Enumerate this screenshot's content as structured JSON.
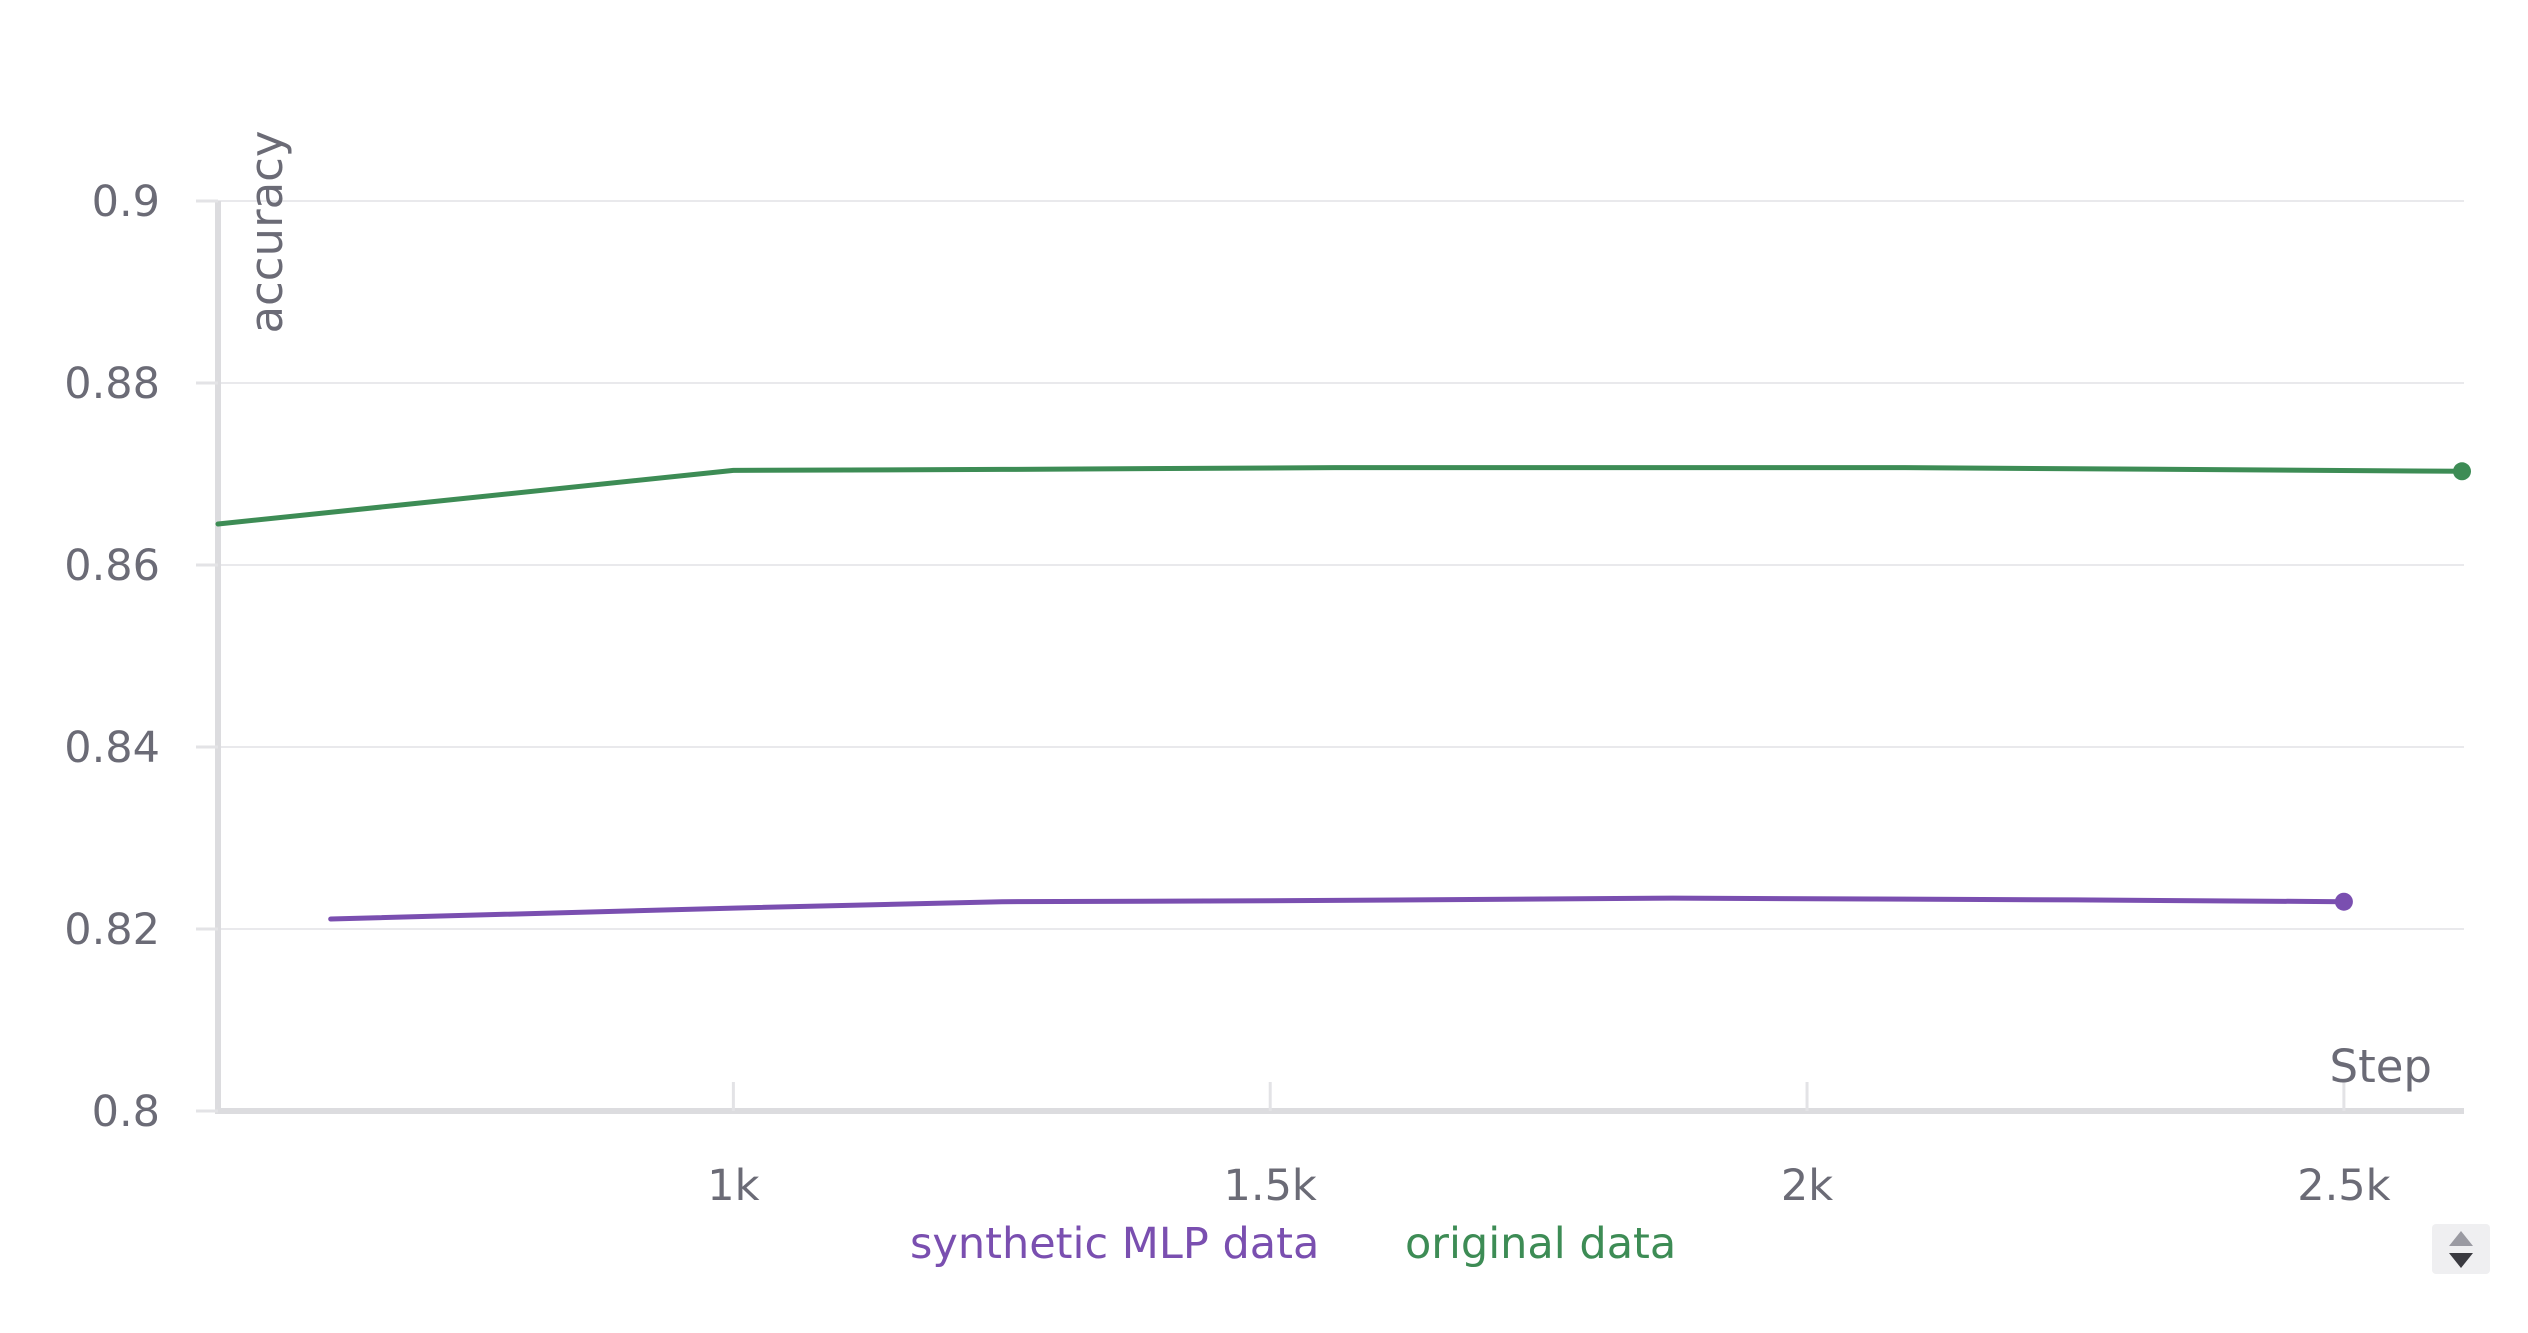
{
  "chart_data": {
    "type": "line",
    "title": "",
    "xlabel": "Step",
    "ylabel": "accuracy",
    "xlim": [
      520,
      2610
    ],
    "ylim": [
      0.8,
      0.9
    ],
    "x_ticks": [
      {
        "value": 1000,
        "label": "1k"
      },
      {
        "value": 1500,
        "label": "1.5k"
      },
      {
        "value": 2000,
        "label": "2k"
      },
      {
        "value": 2500,
        "label": "2.5k"
      }
    ],
    "y_ticks": [
      {
        "value": 0.9,
        "label": "0.9"
      },
      {
        "value": 0.88,
        "label": "0.88"
      },
      {
        "value": 0.86,
        "label": "0.86"
      },
      {
        "value": 0.84,
        "label": "0.84"
      },
      {
        "value": 0.82,
        "label": "0.82"
      },
      {
        "value": 0.8,
        "label": "0.8"
      }
    ],
    "grid": true,
    "legend_position": "bottom",
    "series": [
      {
        "name": "synthetic MLP data",
        "color": "#7a4fb0",
        "x": [
          625,
          1000,
          1250,
          1500,
          1875,
          2250,
          2500
        ],
        "y": [
          0.8211,
          0.8223,
          0.823,
          0.8231,
          0.8234,
          0.8232,
          0.823
        ],
        "end_marker": true
      },
      {
        "name": "original data",
        "color": "#3d8c55",
        "x": [
          520,
          1000,
          1250,
          1560,
          2090,
          2610
        ],
        "y": [
          0.8645,
          0.8704,
          0.8705,
          0.8707,
          0.8707,
          0.8703
        ],
        "end_marker": true
      }
    ]
  },
  "legend_scroll_icon": "up-down-arrows-icon"
}
